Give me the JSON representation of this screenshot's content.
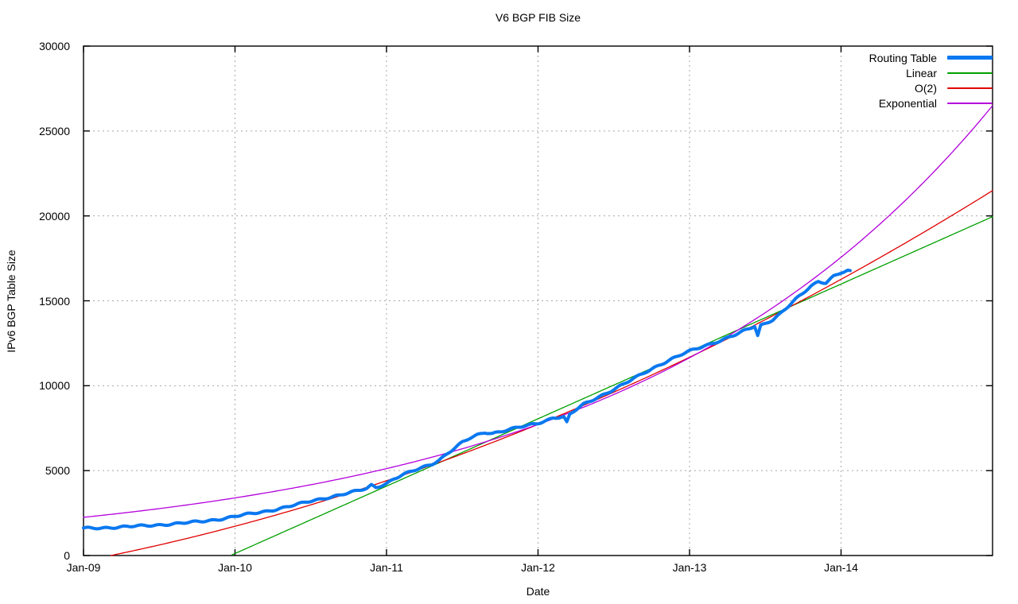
{
  "title": "V6 BGP FIB Size",
  "axes": {
    "x": {
      "label": "Date",
      "tick_labels": [
        "Jan-09",
        "Jan-10",
        "Jan-11",
        "Jan-12",
        "Jan-13",
        "Jan-14"
      ],
      "tick_positions_years": [
        0,
        1,
        2,
        3,
        4,
        5
      ]
    },
    "y": {
      "label": "IPv6 BGP Table Size",
      "tick_labels": [
        "0",
        "5000",
        "10000",
        "15000",
        "20000",
        "25000",
        "30000"
      ],
      "tick_values": [
        0,
        5000,
        10000,
        15000,
        20000,
        25000,
        30000
      ]
    }
  },
  "legend": [
    {
      "label": "Routing Table",
      "color": "#0a78f0",
      "thickness": 5
    },
    {
      "label": "Linear",
      "color": "#00a000",
      "thickness": 2
    },
    {
      "label": "O(2)",
      "color": "#e00000",
      "thickness": 2
    },
    {
      "label": "Exponential",
      "color": "#b400dc",
      "thickness": 2
    }
  ],
  "colors": {
    "grid": "#a8a8a8",
    "axis": "#000000",
    "background": "#ffffff"
  },
  "chart_data": {
    "type": "line",
    "title": "V6 BGP FIB Size",
    "xlabel": "Date",
    "ylabel": "IPv6 BGP Table Size",
    "x_unit": "years since Jan-2009",
    "xlim": [
      0,
      6
    ],
    "ylim": [
      0,
      30000
    ],
    "grid": true,
    "legend_position": "top-right",
    "series": [
      {
        "name": "Routing Table",
        "kind": "data",
        "color": "#0a78f0",
        "stroke_width": 4,
        "points": [
          [
            0,
            1600
          ],
          [
            0.1,
            1630
          ],
          [
            0.2,
            1660
          ],
          [
            0.3,
            1700
          ],
          [
            0.4,
            1750
          ],
          [
            0.5,
            1810
          ],
          [
            0.6,
            1870
          ],
          [
            0.7,
            1940
          ],
          [
            0.8,
            2030
          ],
          [
            0.9,
            2150
          ],
          [
            1.0,
            2300
          ],
          [
            1.1,
            2450
          ],
          [
            1.2,
            2600
          ],
          [
            1.3,
            2780
          ],
          [
            1.4,
            2980
          ],
          [
            1.5,
            3200
          ],
          [
            1.6,
            3400
          ],
          [
            1.7,
            3580
          ],
          [
            1.8,
            3780
          ],
          [
            1.87,
            3950
          ],
          [
            1.9,
            4150
          ],
          [
            1.93,
            4020
          ],
          [
            2.0,
            4250
          ],
          [
            2.05,
            4520
          ],
          [
            2.1,
            4720
          ],
          [
            2.2,
            5060
          ],
          [
            2.3,
            5400
          ],
          [
            2.35,
            5650
          ],
          [
            2.4,
            6000
          ],
          [
            2.45,
            6320
          ],
          [
            2.5,
            6650
          ],
          [
            2.55,
            6900
          ],
          [
            2.6,
            7100
          ],
          [
            2.65,
            7260
          ],
          [
            2.7,
            7210
          ],
          [
            2.8,
            7400
          ],
          [
            2.9,
            7590
          ],
          [
            3.0,
            7800
          ],
          [
            3.05,
            7950
          ],
          [
            3.1,
            8120
          ],
          [
            3.17,
            8160
          ],
          [
            3.19,
            7820
          ],
          [
            3.21,
            8300
          ],
          [
            3.3,
            8900
          ],
          [
            3.4,
            9350
          ],
          [
            3.5,
            9780
          ],
          [
            3.6,
            10250
          ],
          [
            3.7,
            10760
          ],
          [
            3.8,
            11230
          ],
          [
            3.9,
            11640
          ],
          [
            4.0,
            12030
          ],
          [
            4.1,
            12360
          ],
          [
            4.2,
            12650
          ],
          [
            4.3,
            12980
          ],
          [
            4.4,
            13380
          ],
          [
            4.43,
            13520
          ],
          [
            4.45,
            12960
          ],
          [
            4.47,
            13560
          ],
          [
            4.55,
            13900
          ],
          [
            4.6,
            14250
          ],
          [
            4.65,
            14650
          ],
          [
            4.7,
            15070
          ],
          [
            4.75,
            15450
          ],
          [
            4.8,
            15860
          ],
          [
            4.85,
            16150
          ],
          [
            4.9,
            16080
          ],
          [
            4.95,
            16450
          ],
          [
            5.0,
            16650
          ],
          [
            5.06,
            16780
          ]
        ]
      },
      {
        "name": "Linear",
        "kind": "fit-linear",
        "color": "#00a000",
        "stroke_width": 1.3,
        "params": {
          "slope_per_year": 3967,
          "zero_crossing_year": 0.97
        },
        "points": [
          [
            0.97,
            0
          ],
          [
            2,
            4086
          ],
          [
            3,
            8053
          ],
          [
            4,
            12020
          ],
          [
            5,
            15987
          ],
          [
            6,
            19954
          ]
        ]
      },
      {
        "name": "O(2)",
        "kind": "fit-quadratic",
        "color": "#e00000",
        "stroke_width": 1.3,
        "params": {
          "a": 318,
          "b": 1727,
          "c": -321
        },
        "points": [
          [
            0.18,
            0
          ],
          [
            1,
            1724
          ],
          [
            2,
            4405
          ],
          [
            3,
            7722
          ],
          [
            4,
            11675
          ],
          [
            5,
            16264
          ],
          [
            6,
            21489
          ]
        ]
      },
      {
        "name": "Exponential",
        "kind": "fit-exponential",
        "color": "#b400dc",
        "stroke_width": 1.3,
        "params": {
          "amplitude": 2250,
          "rate_per_year": 0.411
        },
        "points": [
          [
            0,
            2250
          ],
          [
            1,
            3391
          ],
          [
            2,
            5110
          ],
          [
            3,
            7701
          ],
          [
            4,
            11606
          ],
          [
            5,
            17490
          ],
          [
            6,
            26360
          ]
        ]
      }
    ]
  }
}
